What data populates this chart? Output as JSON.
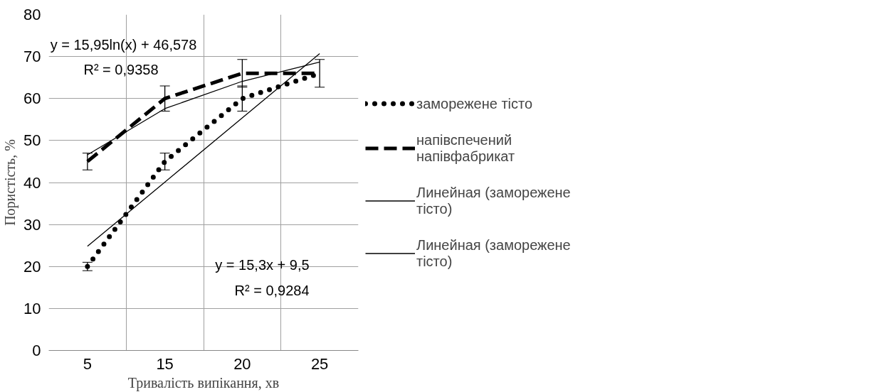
{
  "chart_data": {
    "type": "line",
    "xlabel": "Тривалість випікання, хв",
    "ylabel": "Пористість, %",
    "categories": [
      "5",
      "15",
      "20",
      "25"
    ],
    "ylim": [
      0,
      80
    ],
    "yticks": [
      0,
      10,
      20,
      30,
      40,
      50,
      60,
      70,
      80
    ],
    "grid": true,
    "legend": "right",
    "series": [
      {
        "name": "заморежене тісто",
        "color": "#000000",
        "line_style": "dotted",
        "values": [
          20,
          45,
          60,
          66
        ],
        "errors": [
          1,
          2,
          3,
          null
        ]
      },
      {
        "name": "напівспечений напівфабрикат",
        "color": "#000000",
        "line_style": "dashed",
        "values": [
          45,
          60,
          66,
          66
        ],
        "errors": [
          2,
          3,
          3.3,
          3.3
        ]
      },
      {
        "name": "Линейная (заморежене тісто)",
        "color": "#000000",
        "line_style": "solid",
        "values": [
          24.8,
          40.1,
          55.4,
          70.7
        ]
      },
      {
        "name": "Линейная (заморежене тісто)",
        "color": "#000000",
        "line_style": "solid",
        "values": [
          46.6,
          57.6,
          64.1,
          68.7
        ]
      }
    ],
    "annotations": [
      "y = 15,95ln(x) + 46,578",
      "R² = 0,9358",
      "y = 15,3x + 9,5",
      "R² = 0,9284"
    ]
  }
}
